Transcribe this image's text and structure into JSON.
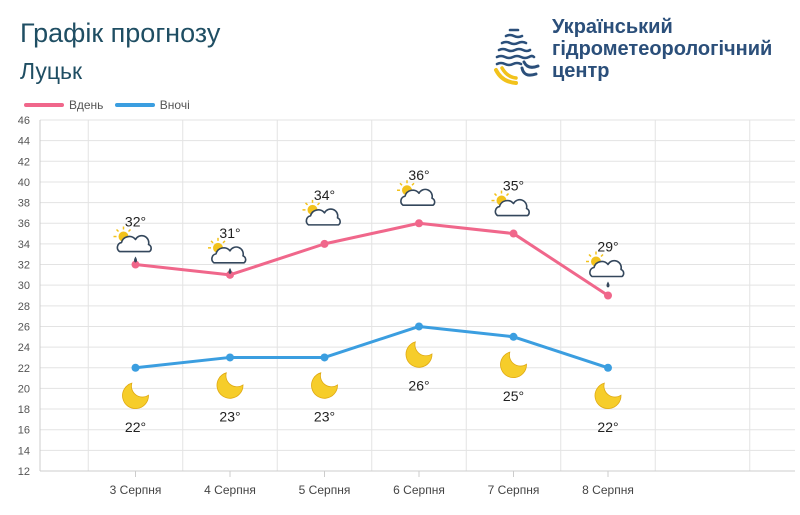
{
  "header": {
    "title": "Графік прогнозу",
    "city": "Луцьк",
    "org_line1": "Український",
    "org_line2": "гідрометеорологічний",
    "org_line3": "центр"
  },
  "colors": {
    "day": "#f0678b",
    "night": "#3b9ee0",
    "grid": "#e3e3e3",
    "logo_dark": "#2b4f7a",
    "logo_yellow": "#f2c21b"
  },
  "chart_data": {
    "type": "line",
    "categories": [
      "3 Серпня",
      "4 Серпня",
      "5 Серпня",
      "6 Серпня",
      "7 Серпня",
      "8 Серпня"
    ],
    "series": [
      {
        "name": "Вдень",
        "values": [
          32,
          31,
          34,
          36,
          35,
          29
        ],
        "labels": [
          "32°",
          "31°",
          "34°",
          "36°",
          "35°",
          "29°"
        ],
        "icons": [
          "sun-cloud-rain-icon",
          "sun-cloud-rain-icon",
          "sun-cloud-icon",
          "sun-cloud-icon",
          "sun-cloud-icon",
          "sun-cloud-rain-icon"
        ]
      },
      {
        "name": "Вночі",
        "values": [
          22,
          23,
          23,
          26,
          25,
          22
        ],
        "labels": [
          "22°",
          "23°",
          "23°",
          "26°",
          "25°",
          "22°"
        ],
        "icons": [
          "moon-icon",
          "moon-icon",
          "moon-icon",
          "moon-icon",
          "moon-icon",
          "moon-icon"
        ]
      }
    ],
    "ylim": [
      12,
      46
    ],
    "yticks": [
      "46",
      "44",
      "42",
      "40",
      "38",
      "36",
      "34",
      "32",
      "30",
      "28",
      "26",
      "24",
      "22",
      "20",
      "18",
      "16",
      "14",
      "12"
    ],
    "grid": true,
    "legend": "top-left"
  }
}
